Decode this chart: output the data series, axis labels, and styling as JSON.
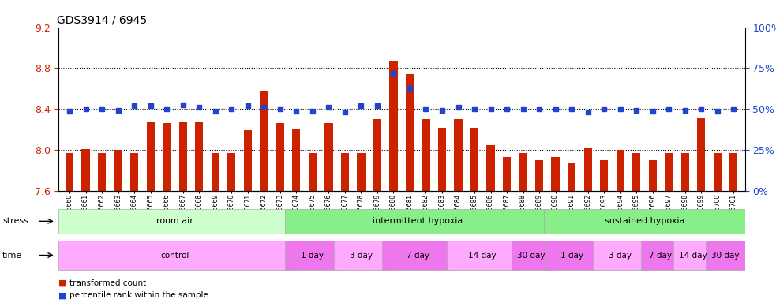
{
  "title": "GDS3914 / 6945",
  "samples": [
    "GSM215660",
    "GSM215661",
    "GSM215662",
    "GSM215663",
    "GSM215664",
    "GSM215665",
    "GSM215666",
    "GSM215667",
    "GSM215668",
    "GSM215669",
    "GSM215670",
    "GSM215671",
    "GSM215672",
    "GSM215673",
    "GSM215674",
    "GSM215675",
    "GSM215676",
    "GSM215677",
    "GSM215678",
    "GSM215679",
    "GSM215680",
    "GSM215681",
    "GSM215682",
    "GSM215683",
    "GSM215684",
    "GSM215685",
    "GSM215686",
    "GSM215687",
    "GSM215688",
    "GSM215689",
    "GSM215690",
    "GSM215691",
    "GSM215692",
    "GSM215693",
    "GSM215694",
    "GSM215695",
    "GSM215696",
    "GSM215697",
    "GSM215698",
    "GSM215699",
    "GSM215700",
    "GSM215701"
  ],
  "bar_values": [
    7.97,
    8.01,
    7.97,
    8.0,
    7.97,
    8.28,
    8.26,
    8.28,
    8.27,
    7.97,
    7.97,
    8.19,
    8.58,
    8.26,
    8.2,
    7.97,
    8.26,
    7.97,
    7.97,
    8.3,
    8.87,
    8.74,
    8.3,
    8.22,
    8.3,
    8.22,
    8.05,
    7.93,
    7.97,
    7.9,
    7.93,
    7.88,
    8.02,
    7.9,
    8.0,
    7.97,
    7.9,
    7.97,
    7.97,
    8.31,
    7.97,
    7.97
  ],
  "percentile_values": [
    8.38,
    8.4,
    8.4,
    8.39,
    8.43,
    8.43,
    8.4,
    8.44,
    8.42,
    8.38,
    8.4,
    8.43,
    8.42,
    8.4,
    8.38,
    8.38,
    8.42,
    8.37,
    8.43,
    8.43,
    8.75,
    8.6,
    8.4,
    8.39,
    8.42,
    8.4,
    8.4,
    8.4,
    8.4,
    8.4,
    8.4,
    8.4,
    8.37,
    8.4,
    8.4,
    8.39,
    8.38,
    8.4,
    8.39,
    8.4,
    8.38,
    8.4
  ],
  "ylim": [
    7.6,
    9.2
  ],
  "yticks": [
    7.6,
    8.0,
    8.4,
    8.8,
    9.2
  ],
  "bar_color": "#cc2200",
  "percentile_color": "#2244cc",
  "grid_dotted_values": [
    8.0,
    8.4,
    8.8
  ],
  "stress_groups": [
    {
      "label": "room air",
      "start": 0,
      "end": 14,
      "color": "#ccffcc"
    },
    {
      "label": "intermittent hypoxia",
      "start": 14,
      "end": 30,
      "color": "#88ee88"
    },
    {
      "label": "sustained hypoxia",
      "start": 30,
      "end": 42,
      "color": "#88ee88"
    }
  ],
  "time_groups": [
    {
      "label": "control",
      "start": 0,
      "end": 14,
      "color": "#ffaaff"
    },
    {
      "label": "1 day",
      "start": 14,
      "end": 17,
      "color": "#ee77ee"
    },
    {
      "label": "3 day",
      "start": 17,
      "end": 20,
      "color": "#ffaaff"
    },
    {
      "label": "7 day",
      "start": 20,
      "end": 24,
      "color": "#ee77ee"
    },
    {
      "label": "14 day",
      "start": 24,
      "end": 28,
      "color": "#ffaaff"
    },
    {
      "label": "30 day",
      "start": 28,
      "end": 30,
      "color": "#ee77ee"
    },
    {
      "label": "1 day",
      "start": 30,
      "end": 33,
      "color": "#ee77ee"
    },
    {
      "label": "3 day",
      "start": 33,
      "end": 36,
      "color": "#ffaaff"
    },
    {
      "label": "7 day",
      "start": 36,
      "end": 38,
      "color": "#ee77ee"
    },
    {
      "label": "14 day",
      "start": 38,
      "end": 40,
      "color": "#ffaaff"
    },
    {
      "label": "30 day",
      "start": 40,
      "end": 42,
      "color": "#ee77ee"
    }
  ],
  "legend_bar_label": "transformed count",
  "legend_pct_label": "percentile rank within the sample",
  "background_color": "#ffffff"
}
